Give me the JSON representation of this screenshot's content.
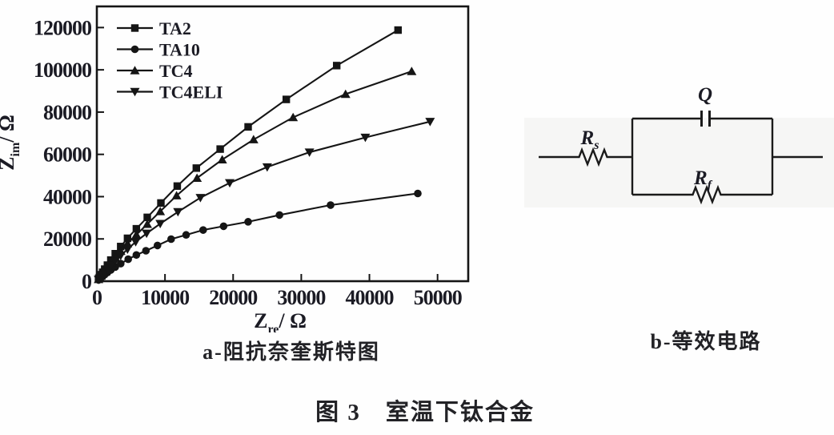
{
  "figure_caption": "图 3　室温下钛合金",
  "panel_a": {
    "caption": "a-阻抗奈奎斯特图"
  },
  "panel_b": {
    "caption": "b-等效电路"
  },
  "circuit": {
    "q_label": "Q",
    "rs": {
      "main": "R",
      "sub": "s"
    },
    "rf": {
      "main": "R",
      "sub": "f"
    }
  },
  "chart_data": {
    "type": "line",
    "title": "",
    "xlabel": {
      "main": "Z",
      "sub": "re",
      "rest": "/ Ω"
    },
    "ylabel": {
      "main": "Z",
      "sub": "im",
      "rest": "/ Ω"
    },
    "xlim": [
      0,
      54500
    ],
    "ylim": [
      0,
      130000
    ],
    "x_ticks": [
      0,
      10000,
      20000,
      30000,
      40000,
      50000
    ],
    "y_ticks": [
      0,
      20000,
      40000,
      60000,
      80000,
      100000,
      120000
    ],
    "grid": false,
    "legend_position": "top-left",
    "line_color": "#151515",
    "series": [
      {
        "name": "TA2",
        "marker": "square",
        "points": [
          [
            250,
            1000
          ],
          [
            400,
            1800
          ],
          [
            600,
            2900
          ],
          [
            850,
            4200
          ],
          [
            1150,
            5700
          ],
          [
            1550,
            7600
          ],
          [
            2050,
            10000
          ],
          [
            2700,
            13000
          ],
          [
            3500,
            16400
          ],
          [
            4500,
            20300
          ],
          [
            5800,
            24800
          ],
          [
            7400,
            30200
          ],
          [
            9400,
            37000
          ],
          [
            11800,
            45000
          ],
          [
            14600,
            53500
          ],
          [
            18100,
            62500
          ],
          [
            22200,
            73000
          ],
          [
            27800,
            86000
          ],
          [
            35200,
            102000
          ],
          [
            44200,
            118800
          ]
        ]
      },
      {
        "name": "TA10",
        "marker": "circle",
        "points": [
          [
            250,
            600
          ],
          [
            400,
            1000
          ],
          [
            600,
            1600
          ],
          [
            850,
            2300
          ],
          [
            1150,
            3100
          ],
          [
            1550,
            4100
          ],
          [
            2050,
            5300
          ],
          [
            2700,
            6700
          ],
          [
            3500,
            8300
          ],
          [
            4600,
            10400
          ],
          [
            5800,
            12400
          ],
          [
            7200,
            14400
          ],
          [
            8900,
            16900
          ],
          [
            10900,
            19900
          ],
          [
            13100,
            21900
          ],
          [
            15600,
            24200
          ],
          [
            18600,
            26000
          ],
          [
            22200,
            28100
          ],
          [
            26800,
            31300
          ],
          [
            34300,
            36000
          ],
          [
            47100,
            41500
          ]
        ]
      },
      {
        "name": "TC4",
        "marker": "triangle-up",
        "points": [
          [
            250,
            900
          ],
          [
            400,
            1600
          ],
          [
            600,
            2500
          ],
          [
            850,
            3600
          ],
          [
            1150,
            4900
          ],
          [
            1550,
            6600
          ],
          [
            2050,
            8700
          ],
          [
            2700,
            11200
          ],
          [
            3500,
            14200
          ],
          [
            4500,
            17800
          ],
          [
            5800,
            22000
          ],
          [
            7400,
            27000
          ],
          [
            9300,
            33000
          ],
          [
            11700,
            40500
          ],
          [
            14700,
            48800
          ],
          [
            18400,
            57500
          ],
          [
            23000,
            67000
          ],
          [
            28800,
            77500
          ],
          [
            36500,
            88500
          ],
          [
            46200,
            99300
          ]
        ]
      },
      {
        "name": "TC4ELI",
        "marker": "triangle-down",
        "points": [
          [
            250,
            800
          ],
          [
            400,
            1400
          ],
          [
            600,
            2200
          ],
          [
            850,
            3100
          ],
          [
            1150,
            4200
          ],
          [
            1550,
            5600
          ],
          [
            2050,
            7400
          ],
          [
            2700,
            9500
          ],
          [
            3500,
            12100
          ],
          [
            4500,
            15100
          ],
          [
            5700,
            18600
          ],
          [
            7300,
            22600
          ],
          [
            9300,
            27200
          ],
          [
            11900,
            32800
          ],
          [
            15200,
            39500
          ],
          [
            19500,
            46500
          ],
          [
            25000,
            54000
          ],
          [
            31200,
            61000
          ],
          [
            39400,
            68000
          ],
          [
            48900,
            75500
          ]
        ]
      }
    ]
  }
}
